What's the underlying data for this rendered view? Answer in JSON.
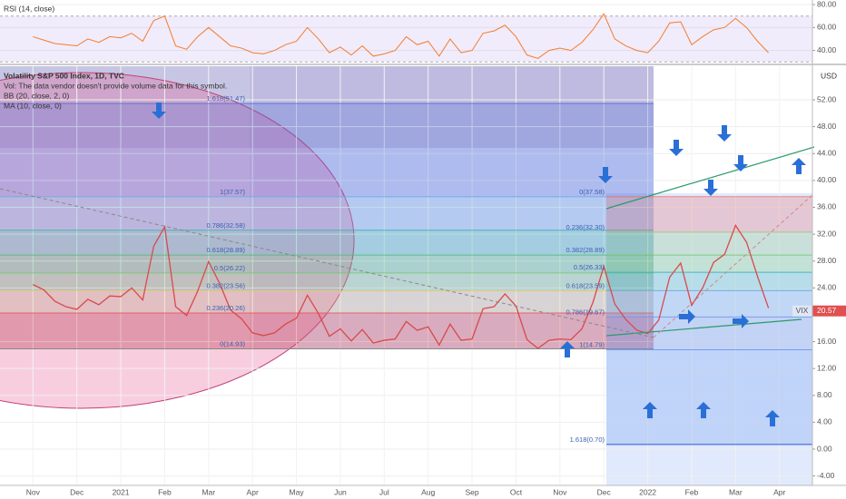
{
  "chart_data": [
    {
      "type": "line",
      "title": "RSI (14, close)",
      "color": "#f57c2a",
      "x": [
        0,
        0.25,
        0.5,
        0.75,
        1,
        1.25,
        1.5,
        1.75,
        2,
        2.25,
        2.5,
        2.75,
        3,
        3.25,
        3.5,
        3.75,
        4,
        4.25,
        4.5,
        4.75,
        5,
        5.25,
        5.5,
        5.75,
        6,
        6.25,
        6.5,
        6.75,
        7,
        7.25,
        7.5,
        7.75,
        8,
        8.25,
        8.5,
        8.75,
        9,
        9.25,
        9.5,
        9.75,
        10,
        10.25,
        10.5,
        10.75,
        11,
        11.25,
        11.5,
        11.75,
        12,
        12.25,
        12.5,
        12.75,
        13,
        13.25,
        13.5,
        13.75,
        14,
        14.25,
        14.5,
        14.75,
        15,
        15.25,
        15.5,
        15.75,
        16,
        16.25,
        16.5,
        16.75
      ],
      "values": [
        52,
        49,
        46,
        45,
        44,
        50,
        47,
        52,
        51,
        55,
        48,
        66,
        70,
        44,
        41,
        52,
        60,
        52,
        44,
        42,
        38,
        37,
        40,
        45,
        48,
        60,
        50,
        38,
        43,
        36,
        44,
        35,
        37,
        40,
        52,
        45,
        48,
        35,
        50,
        38,
        40,
        55,
        57,
        62,
        52,
        36,
        33,
        40,
        42,
        40,
        47,
        58,
        72,
        50,
        44,
        40,
        38,
        48,
        64,
        65,
        45,
        52,
        58,
        60,
        68,
        60,
        48,
        38
      ],
      "band": [
        30,
        70
      ],
      "xlim": [
        -0.75,
        17.75
      ],
      "ylim": [
        28.6,
        84
      ],
      "yticks": [
        {
          "value": 40,
          "label": "40.00"
        },
        {
          "value": 60,
          "label": "60.00"
        },
        {
          "value": 80,
          "label": "80.00"
        }
      ]
    },
    {
      "type": "line",
      "title": "Volatility S&P 500 Index, 1D, TVC",
      "notes": [
        "Vol: The data vendor doesn't provide volume data for this symbol.",
        "BB (20, close, 2, 0)",
        "MA (10, close, 0)"
      ],
      "color": "#d84a4a",
      "x": [
        0,
        0.25,
        0.5,
        0.75,
        1,
        1.25,
        1.5,
        1.75,
        2,
        2.25,
        2.5,
        2.75,
        3,
        3.25,
        3.5,
        3.75,
        4,
        4.25,
        4.5,
        4.75,
        5,
        5.25,
        5.5,
        5.75,
        6,
        6.25,
        6.5,
        6.75,
        7,
        7.25,
        7.5,
        7.75,
        8,
        8.25,
        8.5,
        8.75,
        9,
        9.25,
        9.5,
        9.75,
        10,
        10.25,
        10.5,
        10.75,
        11,
        11.25,
        11.5,
        11.75,
        12,
        12.25,
        12.5,
        12.75,
        13,
        13.25,
        13.5,
        13.75,
        14,
        14.25,
        14.5,
        14.75,
        15,
        15.25,
        15.5,
        15.75,
        16,
        16.25,
        16.5,
        16.75
      ],
      "values": [
        24.5,
        23.7,
        22.0,
        21.2,
        20.8,
        22.3,
        21.5,
        22.8,
        22.7,
        24.0,
        22.2,
        30.2,
        33.1,
        21.2,
        19.9,
        23.5,
        27.9,
        24.7,
        20.7,
        19.4,
        17.3,
        16.9,
        17.3,
        18.6,
        19.5,
        22.9,
        20.2,
        16.8,
        17.9,
        16.1,
        17.8,
        15.8,
        16.2,
        16.4,
        19.0,
        17.7,
        18.2,
        15.5,
        18.6,
        16.2,
        16.4,
        20.9,
        21.2,
        23.1,
        21.3,
        16.3,
        15.0,
        16.2,
        16.4,
        16.3,
        17.9,
        21.8,
        27.2,
        21.6,
        19.3,
        17.7,
        17.2,
        19.2,
        25.6,
        27.7,
        21.4,
        24.0,
        27.8,
        29.0,
        33.3,
        30.8,
        25.7,
        21.0
      ],
      "symbol_tag": "VIX",
      "last_value": 20.57,
      "currency": "USD",
      "xlim": [
        -0.75,
        17.75
      ],
      "ylim": [
        -5.4,
        57.0
      ],
      "xticks": [
        {
          "value": 0,
          "label": "Nov"
        },
        {
          "value": 1,
          "label": "Dec"
        },
        {
          "value": 2,
          "label": "2021"
        },
        {
          "value": 3,
          "label": "Feb"
        },
        {
          "value": 4,
          "label": "Mar"
        },
        {
          "value": 5,
          "label": "Apr"
        },
        {
          "value": 6,
          "label": "May"
        },
        {
          "value": 7,
          "label": "Jun"
        },
        {
          "value": 8,
          "label": "Jul"
        },
        {
          "value": 9,
          "label": "Aug"
        },
        {
          "value": 10,
          "label": "Sep"
        },
        {
          "value": 11,
          "label": "Oct"
        },
        {
          "value": 12,
          "label": "Nov"
        },
        {
          "value": 13,
          "label": "Dec"
        },
        {
          "value": 14,
          "label": "2022"
        },
        {
          "value": 15,
          "label": "Feb"
        },
        {
          "value": 16,
          "label": "Mar"
        },
        {
          "value": 17,
          "label": "Apr"
        }
      ],
      "yticks": [
        {
          "value": -4,
          "label": "-4.00"
        },
        {
          "value": 0,
          "label": "0.00"
        },
        {
          "value": 4,
          "label": "4.00"
        },
        {
          "value": 8,
          "label": "8.00"
        },
        {
          "value": 12,
          "label": "12.00"
        },
        {
          "value": 16,
          "label": "16.00"
        },
        {
          "value": 24,
          "label": "24.00"
        },
        {
          "value": 28,
          "label": "28.00"
        },
        {
          "value": 32,
          "label": "32.00"
        },
        {
          "value": 36,
          "label": "36.00"
        },
        {
          "value": 40,
          "label": "40.00"
        },
        {
          "value": 44,
          "label": "44.00"
        },
        {
          "value": 48,
          "label": "48.00"
        },
        {
          "value": 52,
          "label": "52.00"
        }
      ],
      "fib_left": [
        {
          "label": "1.618(51.47)",
          "value": 51.47,
          "color": "rgba(80,110,220,0.28)"
        },
        {
          "label": "1(37.57)",
          "value": 37.57,
          "color": "rgba(110,170,230,0.30)"
        },
        {
          "label": "0.786(32.58)",
          "value": 32.58,
          "color": "rgba(60,180,180,0.30)"
        },
        {
          "label": "0.618(28.89)",
          "value": 28.89,
          "color": "rgba(80,190,120,0.30)"
        },
        {
          "label": "0.5(26.22)",
          "value": 26.22,
          "color": "rgba(120,200,120,0.28)"
        },
        {
          "label": "0.382(23.56)",
          "value": 23.56,
          "color": "rgba(230,200,120,0.25)"
        },
        {
          "label": "0.236(20.26)",
          "value": 20.26,
          "color": "rgba(230,90,90,0.35)"
        },
        {
          "label": "0(14.93)",
          "value": 14.93,
          "color": "#888"
        }
      ],
      "fib_right": [
        {
          "label": "0(37.58)",
          "value": 37.58,
          "color": "rgba(240,120,120,0.30)"
        },
        {
          "label": "0.236(32.30)",
          "value": 32.3,
          "color": "rgba(150,200,140,0.30)"
        },
        {
          "label": "0.382(28.89)",
          "value": 28.89,
          "color": "rgba(120,200,120,0.28)"
        },
        {
          "label": "0.5(26.33)",
          "value": 26.33,
          "color": "rgba(60,180,180,0.25)"
        },
        {
          "label": "0.618(23.59)",
          "value": 23.59,
          "color": "rgba(110,170,230,0.28)"
        },
        {
          "label": "0.786(19.67)",
          "value": 19.67,
          "color": "rgba(120,150,230,0.28)"
        },
        {
          "label": "1(14.79)",
          "value": 14.79,
          "color": "rgba(110,150,240,0.28)"
        },
        {
          "label": "1.618(0.70)",
          "value": 0.7,
          "color": "#3355cc"
        }
      ]
    }
  ]
}
